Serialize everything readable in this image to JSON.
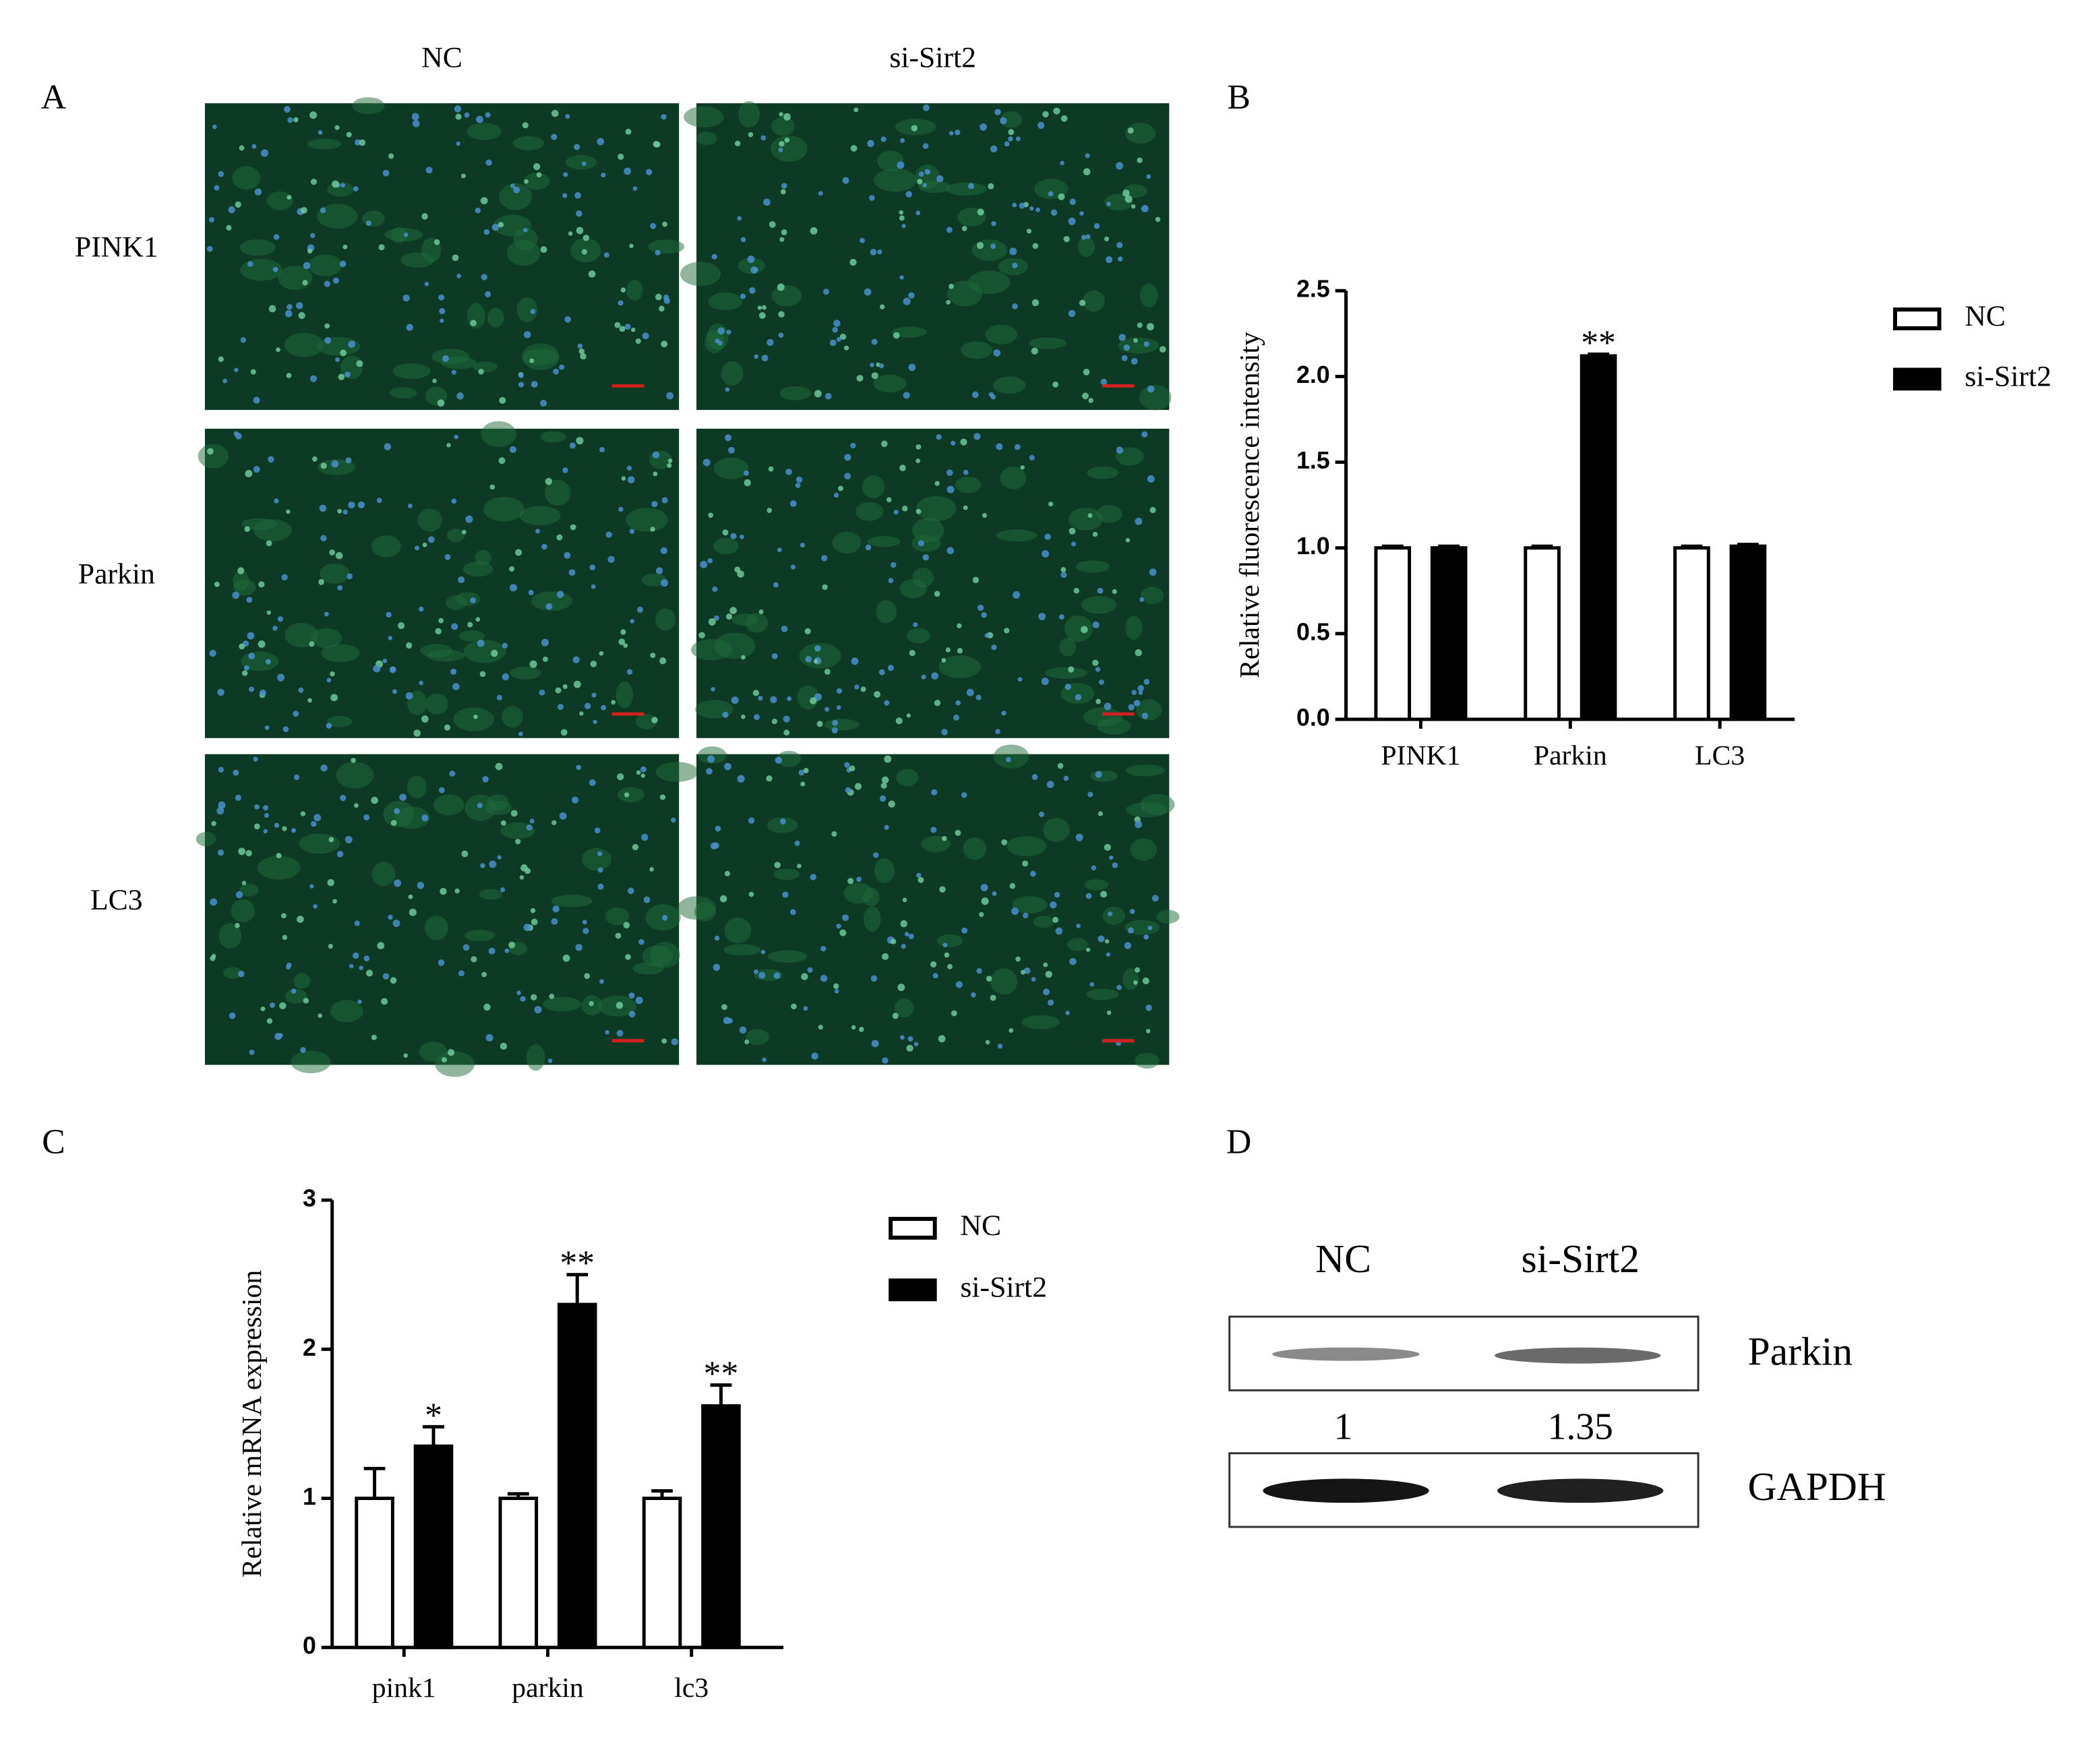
{
  "panel_labels": [
    "A",
    "B",
    "C",
    "D"
  ],
  "micrographs": {
    "columns": [
      "NC",
      "si-Sirt2"
    ],
    "rows": [
      "PINK1",
      "Parkin",
      "LC3"
    ]
  },
  "chart_data": [
    {
      "type": "bar",
      "y_label": "Relative fluorescence intensity",
      "categories": [
        "PINK1",
        "Parkin",
        "LC3"
      ],
      "series": [
        {
          "name": "NC",
          "color": "#ffffff",
          "values": [
            1.0,
            1.0,
            1.0
          ],
          "errors": [
            0.01,
            0.01,
            0.01
          ]
        },
        {
          "name": "si-Sirt2",
          "color": "#000000",
          "values": [
            1.0,
            2.12,
            1.01
          ],
          "errors": [
            0.01,
            0.01,
            0.01
          ],
          "significance": [
            null,
            "**",
            null
          ]
        }
      ],
      "ylim": [
        0,
        2.5
      ],
      "yticks": [
        {
          "value": 0,
          "label": "0.0"
        },
        {
          "value": 0.5,
          "label": "0.5"
        },
        {
          "value": 1,
          "label": "1.0"
        },
        {
          "value": 1.5,
          "label": "1.5"
        },
        {
          "value": 2,
          "label": "2.0"
        },
        {
          "value": 2.5,
          "label": "2.5"
        }
      ]
    },
    {
      "type": "bar",
      "y_label": "Relative mRNA expression",
      "categories": [
        "pink1",
        "parkin",
        "lc3"
      ],
      "series": [
        {
          "name": "NC",
          "color": "#ffffff",
          "values": [
            1,
            1,
            1
          ],
          "errors": [
            0.2,
            0.03,
            0.05
          ]
        },
        {
          "name": "si-Sirt2",
          "color": "#000000",
          "values": [
            1.35,
            2.3,
            1.62
          ],
          "errors": [
            0.13,
            0.2,
            0.14
          ],
          "significance": [
            "*",
            "**",
            "**"
          ]
        }
      ],
      "ylim": [
        0,
        3
      ],
      "yticks": [
        0,
        1,
        2,
        3
      ]
    }
  ],
  "western_blot": {
    "lanes": [
      "NC",
      "si-Sirt2"
    ],
    "bands": [
      "Parkin",
      "GAPDH"
    ],
    "relative_density": [
      1,
      1.35
    ]
  }
}
